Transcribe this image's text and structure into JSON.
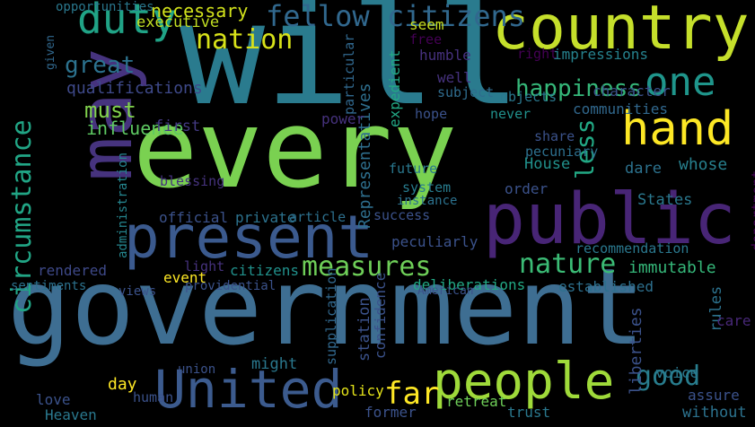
{
  "cloud": {
    "background": "#000000",
    "words": [
      {
        "text": "will",
        "color": "#2a7b8e"
      },
      {
        "text": "every",
        "color": "#7ad151"
      },
      {
        "text": "government",
        "color": "#3e6e92"
      },
      {
        "text": "country",
        "color": "#c5df2b"
      },
      {
        "text": "public",
        "color": "#482576"
      },
      {
        "text": "present",
        "color": "#3b5a8e"
      },
      {
        "text": "may",
        "color": "#46337e"
      },
      {
        "text": "people",
        "color": "#9fda3a"
      },
      {
        "text": "United",
        "color": "#3c5b8e"
      },
      {
        "text": "duty",
        "color": "#20a386"
      },
      {
        "text": "hand",
        "color": "#fde725"
      },
      {
        "text": "one",
        "color": "#1f958b"
      },
      {
        "text": "circumstance",
        "color": "#21a585"
      },
      {
        "text": "fellow citizens",
        "color": "#31688e"
      },
      {
        "text": "nation",
        "color": "#d8e219"
      },
      {
        "text": "happiness",
        "color": "#35b779"
      },
      {
        "text": "measures",
        "color": "#6ece58"
      },
      {
        "text": "nature",
        "color": "#3bbb75"
      },
      {
        "text": "great",
        "color": "#2c728e"
      },
      {
        "text": "must",
        "color": "#81d34d"
      },
      {
        "text": "good",
        "color": "#287d8e"
      },
      {
        "text": "far",
        "color": "#fde725"
      },
      {
        "text": "less",
        "color": "#22a884"
      },
      {
        "text": "influence",
        "color": "#5ec962"
      },
      {
        "text": "qualifications",
        "color": "#3e4989"
      },
      {
        "text": "necessary",
        "color": "#d2e21b"
      },
      {
        "text": "Representatives",
        "color": "#2e6f8e"
      },
      {
        "text": "executive",
        "color": "#c2df23"
      },
      {
        "text": "opportunities",
        "color": "#2a788e"
      },
      {
        "text": "seem",
        "color": "#c8e020"
      },
      {
        "text": "free",
        "color": "#440154"
      },
      {
        "text": "humble",
        "color": "#46317e"
      },
      {
        "text": "right",
        "color": "#440154"
      },
      {
        "text": "impressions",
        "color": "#26828e"
      },
      {
        "text": "well",
        "color": "#46327e"
      },
      {
        "text": "subject",
        "color": "#2f6c8e"
      },
      {
        "text": "character",
        "color": "#3b528b"
      },
      {
        "text": "objects",
        "color": "#2a788e"
      },
      {
        "text": "communities",
        "color": "#31688e"
      },
      {
        "text": "hope",
        "color": "#3b528b"
      },
      {
        "text": "never",
        "color": "#21918c"
      },
      {
        "text": "share",
        "color": "#3b528b"
      },
      {
        "text": "pecuniary",
        "color": "#2d708e"
      },
      {
        "text": "dare",
        "color": "#2c728e"
      },
      {
        "text": "whose",
        "color": "#27808e"
      },
      {
        "text": "department",
        "color": "#440154"
      },
      {
        "text": "first",
        "color": "#443a83"
      },
      {
        "text": "power",
        "color": "#46327e"
      },
      {
        "text": "particular",
        "color": "#31688e"
      },
      {
        "text": "expedient",
        "color": "#22a884"
      },
      {
        "text": "House",
        "color": "#21918c"
      },
      {
        "text": "future",
        "color": "#2a788e"
      },
      {
        "text": "system",
        "color": "#287c8e"
      },
      {
        "text": "instance",
        "color": "#2c728e"
      },
      {
        "text": "order",
        "color": "#3b528b"
      },
      {
        "text": "States",
        "color": "#2a788e"
      },
      {
        "text": "blessing",
        "color": "#46337e"
      },
      {
        "text": "official",
        "color": "#3b528b"
      },
      {
        "text": "private",
        "color": "#2c728e"
      },
      {
        "text": "article",
        "color": "#2d708e"
      },
      {
        "text": "success",
        "color": "#3b528b"
      },
      {
        "text": "peculiarly",
        "color": "#3b528b"
      },
      {
        "text": "recommendation",
        "color": "#2a788e"
      },
      {
        "text": "immutable",
        "color": "#35b779"
      },
      {
        "text": "administration",
        "color": "#25858e"
      },
      {
        "text": "rendered",
        "color": "#3e4989"
      },
      {
        "text": "light",
        "color": "#46327e"
      },
      {
        "text": "event",
        "color": "#fde725"
      },
      {
        "text": "citizens",
        "color": "#21918c"
      },
      {
        "text": "providential",
        "color": "#3b528b"
      },
      {
        "text": "deliberations",
        "color": "#22a884"
      },
      {
        "text": "established",
        "color": "#2d708e"
      },
      {
        "text": "sentiments",
        "color": "#2c728e"
      },
      {
        "text": "views",
        "color": "#3b528b"
      },
      {
        "text": "American",
        "color": "#3b528b"
      },
      {
        "text": "rules",
        "color": "#2c728e"
      },
      {
        "text": "care",
        "color": "#482878"
      },
      {
        "text": "might",
        "color": "#2a788e"
      },
      {
        "text": "day",
        "color": "#fde725"
      },
      {
        "text": "union",
        "color": "#3b528b"
      },
      {
        "text": "supplication",
        "color": "#31688e"
      },
      {
        "text": "station",
        "color": "#3b528b"
      },
      {
        "text": "confidence",
        "color": "#3b528b"
      },
      {
        "text": "liberties",
        "color": "#3b528b"
      },
      {
        "text": "voice",
        "color": "#2a788e"
      },
      {
        "text": "assure",
        "color": "#3b528b"
      },
      {
        "text": "without",
        "color": "#2c728e"
      },
      {
        "text": "policy",
        "color": "#e5e419"
      },
      {
        "text": "former",
        "color": "#3b528b"
      },
      {
        "text": "retreat",
        "color": "#6ece58"
      },
      {
        "text": "trust",
        "color": "#2a788e"
      },
      {
        "text": "love",
        "color": "#3b528b"
      },
      {
        "text": "human",
        "color": "#3b528b"
      },
      {
        "text": "Heaven",
        "color": "#2a788e"
      },
      {
        "text": "given",
        "color": "#31688e"
      }
    ]
  }
}
